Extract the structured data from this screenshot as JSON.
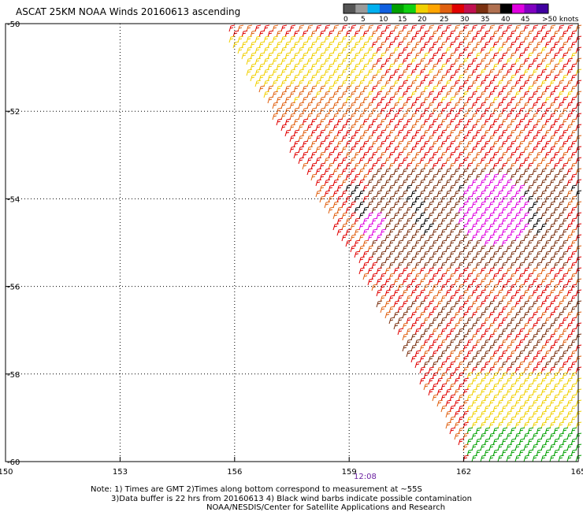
{
  "title": "ASCAT 25KM NOAA Winds 20160613 ascending",
  "legend": {
    "labels": [
      "0",
      "5",
      "10",
      "15",
      "20",
      "25",
      "30",
      "35",
      "40",
      "45",
      ">50 knots"
    ],
    "colors": [
      "#555555",
      "#9a9a9a",
      "#00b0f0",
      "#1060e0",
      "#00a000",
      "#10d010",
      "#f0d000",
      "#ffa500",
      "#e06010",
      "#e00000",
      "#c01050",
      "#7a3010",
      "#b07050",
      "#000000",
      "#e000e0",
      "#8000c0",
      "#4000a0"
    ]
  },
  "axes": {
    "x_ticks": [
      "150",
      "153",
      "156",
      "159",
      "162",
      "165"
    ],
    "y_ticks": [
      "-50",
      "-52",
      "-54",
      "-56",
      "-58",
      "-60"
    ],
    "xlim": [
      150,
      165
    ],
    "ylim": [
      -60,
      -50
    ]
  },
  "time_label": "12:08",
  "notes": {
    "line1": "Note: 1) Times are GMT 2)Times along bottom correspond to measurement at ~55S",
    "line2": "3)Data buffer is 22 hrs from 20160613 4) Black wind barbs indicate possible contamination",
    "line3": "NOAA/NESDIS/Center for Satellite Applications and Research"
  },
  "swath_colors": {
    "strong": "#e00000",
    "moderate": "#e06010",
    "light": "#f0d000",
    "calm": "#00a000",
    "very_strong": "#7a3010",
    "extreme": "#e000e0",
    "contaminated": "#000000"
  }
}
